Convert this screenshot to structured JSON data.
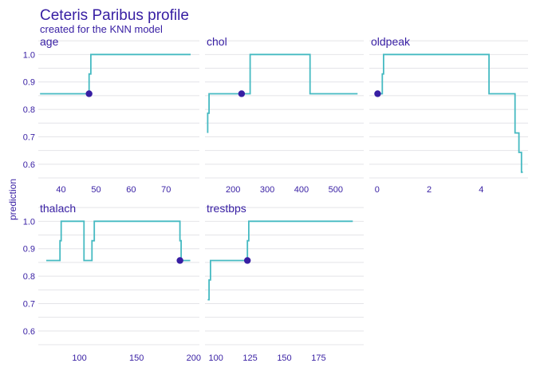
{
  "title": "Ceteris Paribus profile",
  "subtitle": "created for the KNN model",
  "colors": {
    "text": "#371ea3",
    "line": "#46bac2",
    "point": "#371ea3",
    "grid": "#e4e4e8"
  },
  "chart_data": {
    "type": "line",
    "ylabel": "prediction",
    "ylim": [
      0.55,
      1.03
    ],
    "yticks": [
      0.6,
      0.7,
      0.8,
      0.9,
      1.0
    ],
    "ytick_labels": [
      "0.6",
      "0.7",
      "0.8",
      "0.9",
      "1.0"
    ],
    "panels": [
      {
        "name": "age",
        "xlim": [
          33.5,
          79.5
        ],
        "xticks": [
          40,
          50,
          60,
          70
        ],
        "x": [
          34,
          48,
          48,
          48.5,
          48.5,
          77
        ],
        "y": [
          0.857,
          0.857,
          0.929,
          0.929,
          1.0,
          1.0
        ],
        "point": {
          "x": 48,
          "y": 0.857
        }
      },
      {
        "name": "chol",
        "xlim": [
          118,
          582
        ],
        "xticks": [
          200,
          300,
          400,
          500
        ],
        "x": [
          126,
          126,
          130,
          130,
          133,
          133,
          225,
          225,
          250,
          250,
          425,
          425,
          564
        ],
        "y": [
          0.714,
          0.786,
          0.786,
          0.857,
          0.857,
          0.857,
          0.857,
          0.857,
          0.857,
          1.0,
          1.0,
          0.857,
          0.857
        ],
        "point": {
          "x": 225,
          "y": 0.857
        }
      },
      {
        "name": "oldpeak",
        "xlim": [
          -0.3,
          5.8
        ],
        "xticks": [
          0,
          2,
          4
        ],
        "x": [
          0,
          0.2,
          0.2,
          0.25,
          0.25,
          4.3,
          4.3,
          5.3,
          5.3,
          5.45,
          5.45,
          5.55,
          5.55,
          5.6
        ],
        "y": [
          0.857,
          0.857,
          0.929,
          0.929,
          1.0,
          1.0,
          0.857,
          0.857,
          0.714,
          0.714,
          0.643,
          0.643,
          0.571,
          0.571
        ],
        "point": {
          "x": 0.02,
          "y": 0.857
        }
      },
      {
        "name": "thalach",
        "xlim": [
          64,
          205
        ],
        "xticks": [
          100,
          150,
          200
        ],
        "x": [
          71,
          83,
          83,
          84,
          84,
          95,
          95,
          104,
          104,
          105,
          105,
          111,
          111,
          113,
          113,
          188,
          188,
          189,
          189,
          197
        ],
        "y": [
          0.857,
          0.857,
          0.929,
          0.929,
          1.0,
          1.0,
          1.0,
          1.0,
          0.857,
          0.857,
          0.857,
          0.857,
          0.929,
          0.929,
          1.0,
          1.0,
          0.929,
          0.929,
          0.857,
          0.857
        ],
        "point": {
          "x": 188,
          "y": 0.857
        }
      },
      {
        "name": "trestbps",
        "xlim": [
          92,
          208
        ],
        "xticks": [
          100,
          125,
          150,
          175
        ],
        "x": [
          94,
          95,
          95,
          96,
          96,
          123,
          123,
          124,
          124,
          200
        ],
        "y": [
          0.714,
          0.714,
          0.786,
          0.786,
          0.857,
          0.857,
          0.929,
          0.929,
          1.0,
          1.0
        ],
        "point": {
          "x": 123,
          "y": 0.857
        }
      }
    ]
  }
}
